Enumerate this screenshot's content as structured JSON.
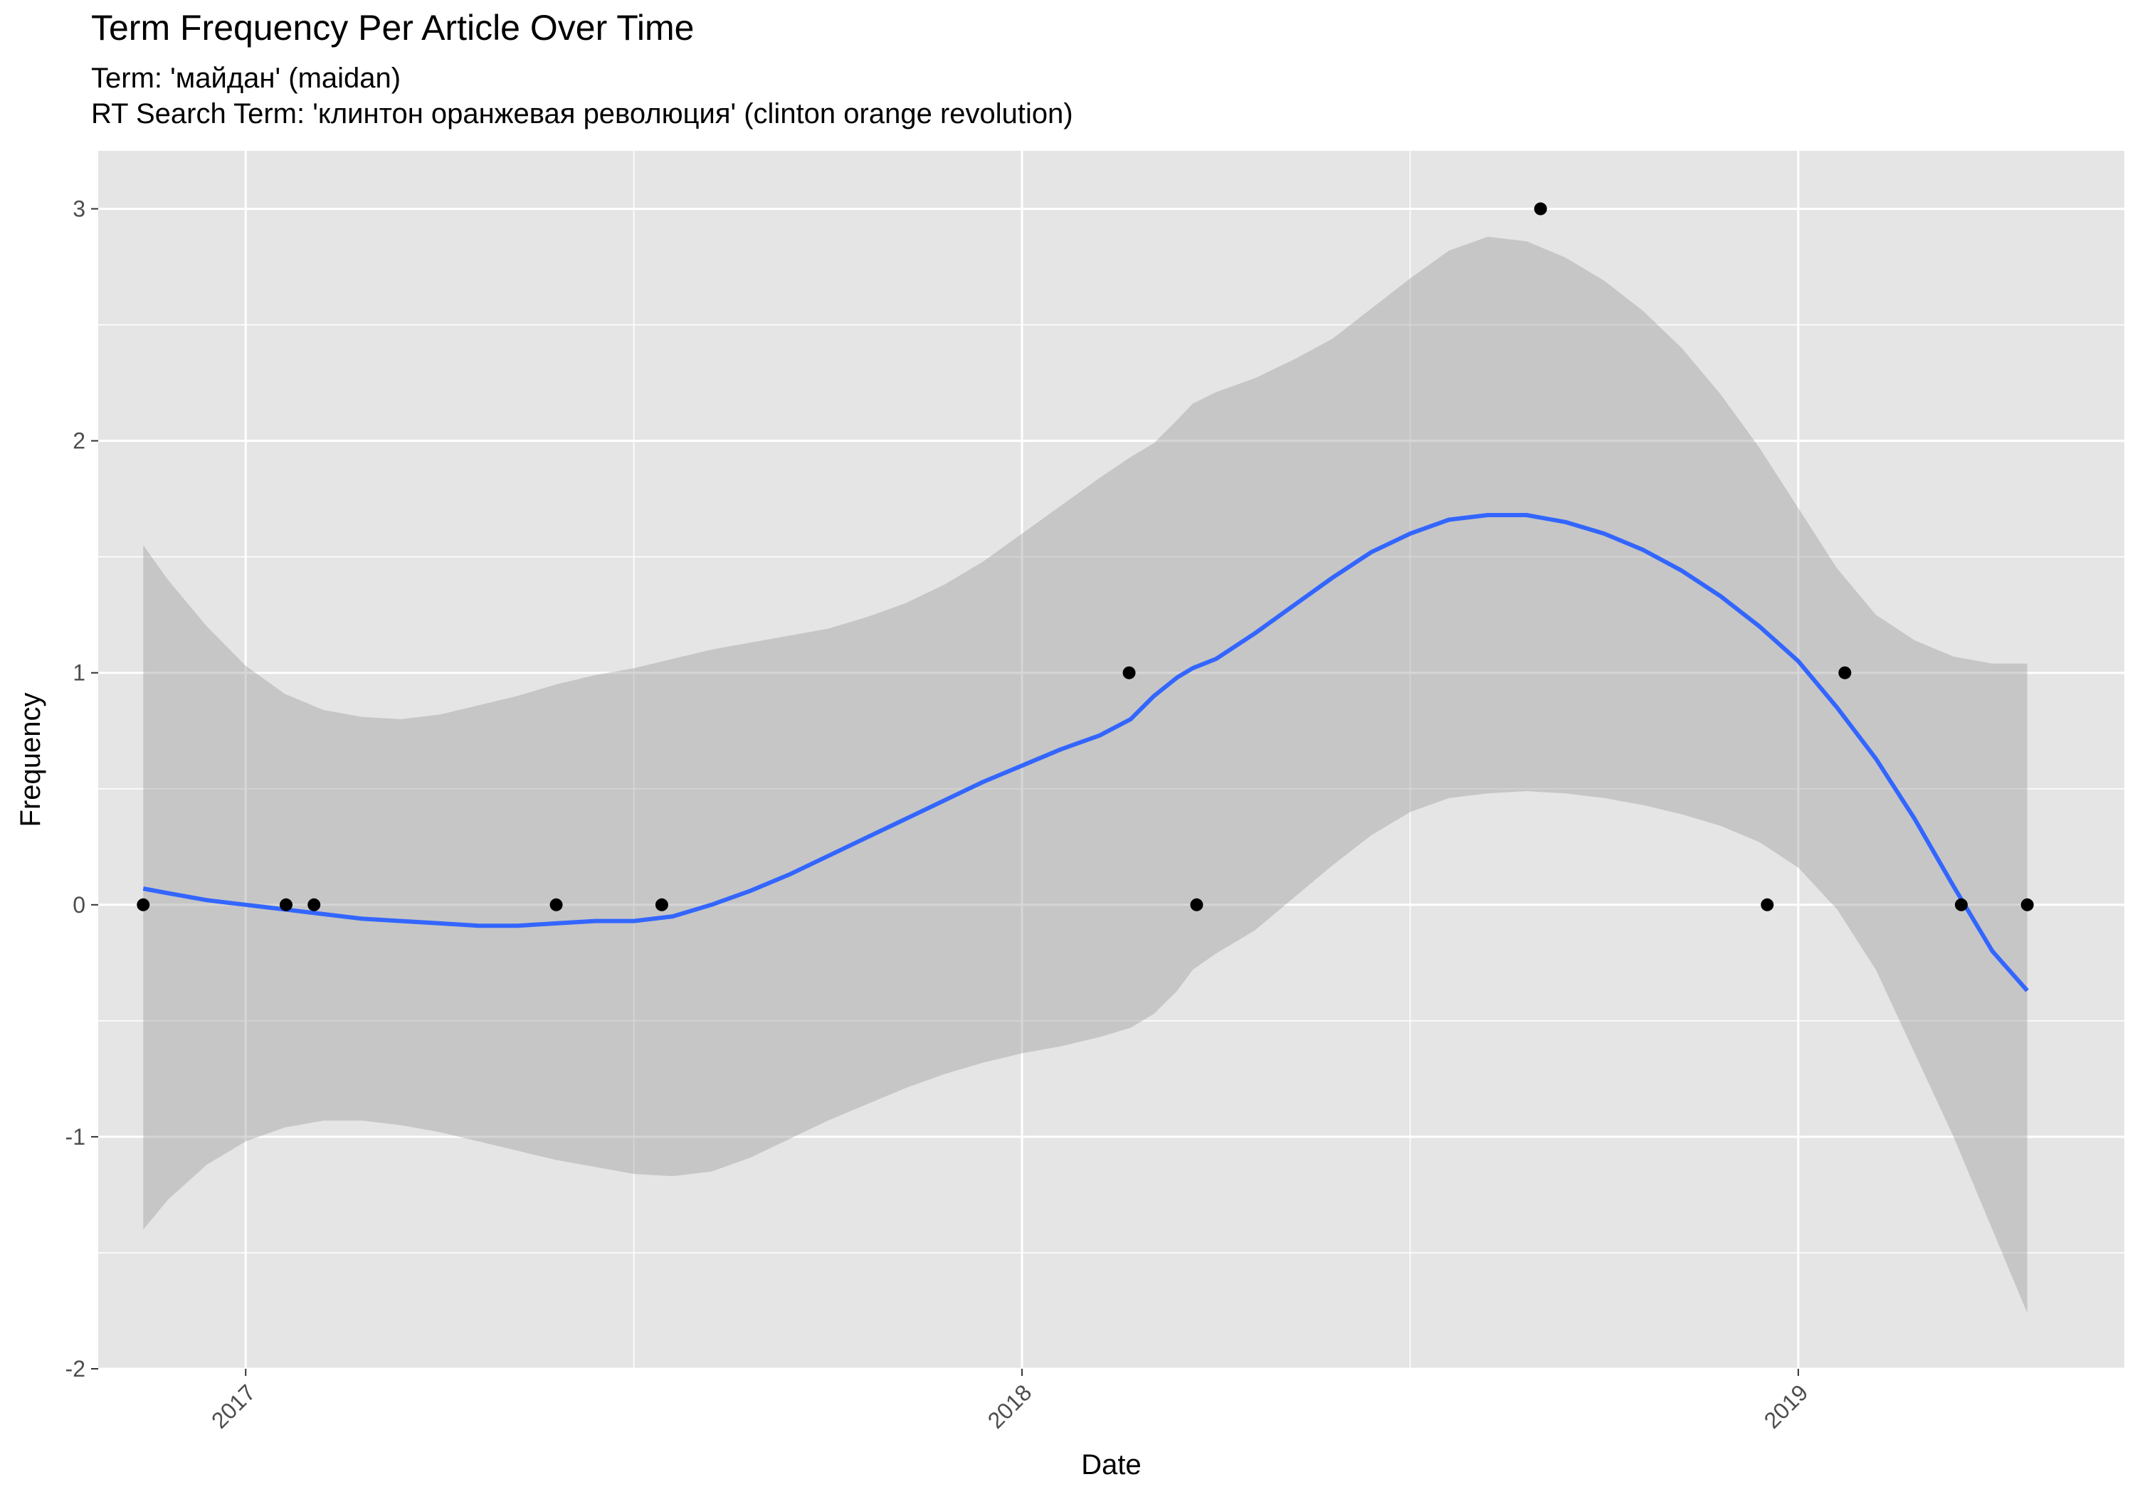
{
  "chart_data": {
    "type": "scatter",
    "title": "Term Frequency Per Article Over Time",
    "subtitle_lines": [
      "Term: 'майдан' (maidan)",
      "RT Search Term: 'клинтон оранжевая революция' (clinton orange revolution)"
    ],
    "xlabel": "Date",
    "ylabel": "Frequency",
    "xlim": [
      2016.81,
      2019.42
    ],
    "ylim": [
      -2,
      3.25
    ],
    "x_ticks": [
      2017,
      2018,
      2019
    ],
    "x_tick_labels": [
      "2017",
      "2018",
      "2019"
    ],
    "y_ticks": [
      -2,
      -1,
      0,
      1,
      2,
      3
    ],
    "y_tick_labels": [
      "-2",
      "-1",
      "0",
      "1",
      "2",
      "3"
    ],
    "grid": true,
    "points": {
      "x": [
        2016.868,
        2017.052,
        2017.088,
        2017.4,
        2017.536,
        2018.138,
        2018.225,
        2018.668,
        2018.96,
        2019.06,
        2019.21,
        2019.295
      ],
      "y": [
        0,
        0,
        0,
        0,
        0,
        1,
        0,
        3,
        0,
        1,
        0,
        0
      ]
    },
    "smooth": {
      "name": "loess fit",
      "x": [
        2016.868,
        2016.9,
        2016.95,
        2017.0,
        2017.05,
        2017.1,
        2017.15,
        2017.2,
        2017.25,
        2017.3,
        2017.35,
        2017.4,
        2017.45,
        2017.5,
        2017.55,
        2017.6,
        2017.65,
        2017.7,
        2017.75,
        2017.8,
        2017.85,
        2017.9,
        2017.95,
        2018.0,
        2018.05,
        2018.1,
        2018.14,
        2018.17,
        2018.2,
        2018.22,
        2018.25,
        2018.3,
        2018.35,
        2018.4,
        2018.45,
        2018.5,
        2018.55,
        2018.6,
        2018.65,
        2018.7,
        2018.75,
        2018.8,
        2018.85,
        2018.9,
        2018.95,
        2019.0,
        2019.05,
        2019.1,
        2019.15,
        2019.2,
        2019.25,
        2019.295
      ],
      "y": [
        0.07,
        0.05,
        0.02,
        0.0,
        -0.02,
        -0.04,
        -0.06,
        -0.07,
        -0.08,
        -0.09,
        -0.09,
        -0.08,
        -0.07,
        -0.07,
        -0.05,
        0.0,
        0.06,
        0.13,
        0.21,
        0.29,
        0.37,
        0.45,
        0.53,
        0.6,
        0.67,
        0.73,
        0.8,
        0.9,
        0.98,
        1.02,
        1.06,
        1.17,
        1.29,
        1.41,
        1.52,
        1.6,
        1.66,
        1.68,
        1.68,
        1.65,
        1.6,
        1.53,
        1.44,
        1.33,
        1.2,
        1.05,
        0.85,
        0.63,
        0.37,
        0.08,
        -0.2,
        -0.37
      ]
    },
    "ribbon": {
      "name": "95% confidence band",
      "x": [
        2016.868,
        2016.9,
        2016.95,
        2017.0,
        2017.05,
        2017.1,
        2017.15,
        2017.2,
        2017.25,
        2017.3,
        2017.35,
        2017.4,
        2017.45,
        2017.5,
        2017.55,
        2017.6,
        2017.65,
        2017.7,
        2017.75,
        2017.8,
        2017.85,
        2017.9,
        2017.95,
        2018.0,
        2018.05,
        2018.1,
        2018.14,
        2018.17,
        2018.2,
        2018.22,
        2018.25,
        2018.3,
        2018.35,
        2018.4,
        2018.45,
        2018.5,
        2018.55,
        2018.6,
        2018.65,
        2018.7,
        2018.75,
        2018.8,
        2018.85,
        2018.9,
        2018.95,
        2019.0,
        2019.05,
        2019.1,
        2019.15,
        2019.2,
        2019.25,
        2019.295
      ],
      "lower": [
        -1.4,
        -1.27,
        -1.12,
        -1.02,
        -0.96,
        -0.93,
        -0.93,
        -0.95,
        -0.98,
        -1.02,
        -1.06,
        -1.1,
        -1.13,
        -1.16,
        -1.17,
        -1.15,
        -1.09,
        -1.01,
        -0.93,
        -0.86,
        -0.79,
        -0.73,
        -0.68,
        -0.64,
        -0.61,
        -0.57,
        -0.53,
        -0.47,
        -0.37,
        -0.28,
        -0.21,
        -0.11,
        0.03,
        0.17,
        0.3,
        0.4,
        0.46,
        0.48,
        0.49,
        0.48,
        0.46,
        0.43,
        0.39,
        0.34,
        0.27,
        0.16,
        -0.02,
        -0.28,
        -0.64,
        -1.0,
        -1.4,
        -1.76
      ],
      "upper": [
        1.55,
        1.4,
        1.2,
        1.03,
        0.91,
        0.84,
        0.81,
        0.8,
        0.82,
        0.86,
        0.9,
        0.95,
        0.99,
        1.02,
        1.06,
        1.1,
        1.13,
        1.16,
        1.19,
        1.24,
        1.3,
        1.38,
        1.48,
        1.6,
        1.72,
        1.84,
        1.93,
        1.99,
        2.09,
        2.16,
        2.21,
        2.27,
        2.35,
        2.44,
        2.57,
        2.7,
        2.82,
        2.88,
        2.86,
        2.79,
        2.69,
        2.56,
        2.4,
        2.2,
        1.97,
        1.71,
        1.45,
        1.25,
        1.14,
        1.07,
        1.04,
        1.04
      ]
    },
    "colors": {
      "panel_background": "#e5e5e5",
      "grid_line": "#ffffff",
      "ribbon_fill": "#999999",
      "smooth_line": "#3366ff",
      "point": "#000000",
      "tick_text": "#4d4d4d"
    }
  }
}
